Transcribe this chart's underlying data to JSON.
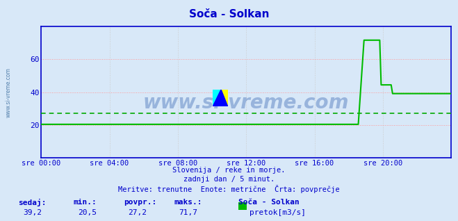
{
  "title": "Soča - Solkan",
  "bg_color": "#d8e8f8",
  "plot_bg_color": "#d8e8f8",
  "line_color": "#00bb00",
  "avg_line_color": "#00aa00",
  "axis_color": "#0000cc",
  "grid_color_h": "#ff9999",
  "grid_color_v": "#cccccc",
  "text_color": "#0000cc",
  "ylim": [
    0,
    80
  ],
  "yticks": [
    20,
    40,
    60
  ],
  "x_tick_positions": [
    0,
    4,
    8,
    12,
    16,
    20
  ],
  "x_labels": [
    "sre 00:00",
    "sre 04:00",
    "sre 08:00",
    "sre 12:00",
    "sre 16:00",
    "sre 20:00"
  ],
  "avg_value": 27.2,
  "min_value": 20.5,
  "max_value": 71.7,
  "current_value": 39.2,
  "subtitle1": "Slovenija / reke in morje.",
  "subtitle2": "zadnji dan / 5 minut.",
  "subtitle3": "Meritve: trenutne  Enote: metrične  Črta: povprečje",
  "label_sedaj": "sedaj:",
  "label_min": "min.:",
  "label_povpr": "povpr.:",
  "label_maks": "maks.:",
  "label_station": "Soča - Solkan",
  "label_legend": "pretok[m3/s]",
  "watermark": "www.si-vreme.com"
}
